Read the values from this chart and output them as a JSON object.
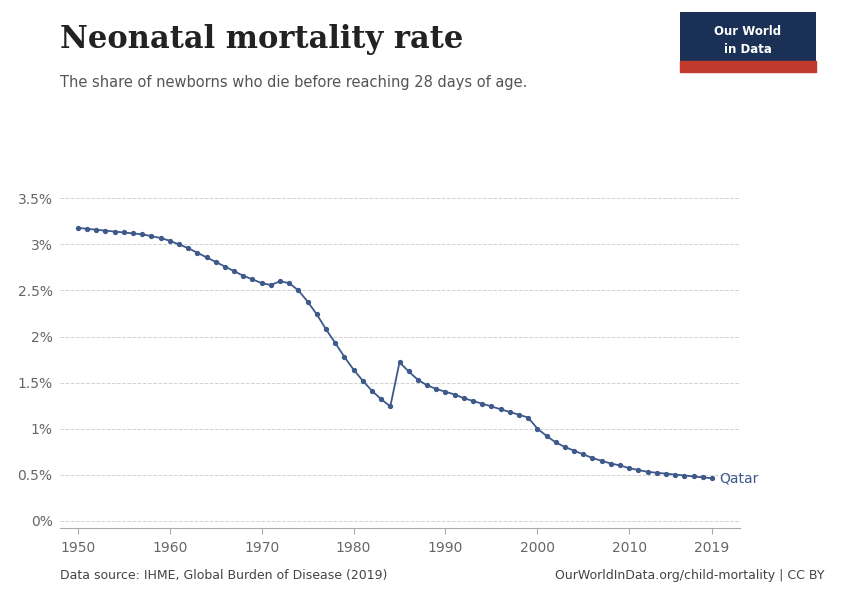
{
  "title": "Neonatal mortality rate",
  "subtitle": "The share of newborns who die before reaching 28 days of age.",
  "data_source": "Data source: IHME, Global Burden of Disease (2019)",
  "copyright": "OurWorldInData.org/child-mortality | CC BY",
  "line_color": "#3d5a8a",
  "marker_color": "#3d5a8a",
  "background_color": "#ffffff",
  "grid_color": "#cccccc",
  "label_name": "Qatar",
  "years": [
    1950,
    1951,
    1952,
    1953,
    1954,
    1955,
    1956,
    1957,
    1958,
    1959,
    1960,
    1961,
    1962,
    1963,
    1964,
    1965,
    1966,
    1967,
    1968,
    1969,
    1970,
    1971,
    1972,
    1973,
    1974,
    1975,
    1976,
    1977,
    1978,
    1979,
    1980,
    1981,
    1982,
    1983,
    1984,
    1985,
    1986,
    1987,
    1988,
    1989,
    1990,
    1991,
    1992,
    1993,
    1994,
    1995,
    1996,
    1997,
    1998,
    1999,
    2000,
    2001,
    2002,
    2003,
    2004,
    2005,
    2006,
    2007,
    2008,
    2009,
    2010,
    2011,
    2012,
    2013,
    2014,
    2015,
    2016,
    2017,
    2018,
    2019
  ],
  "values": [
    0.0318,
    0.0317,
    0.0316,
    0.0315,
    0.0314,
    0.0313,
    0.0312,
    0.0311,
    0.0309,
    0.0307,
    0.0304,
    0.03,
    0.0296,
    0.0291,
    0.0286,
    0.0281,
    0.0276,
    0.0271,
    0.0266,
    0.0262,
    0.0258,
    0.0256,
    0.026,
    0.0258,
    0.025,
    0.0238,
    0.0224,
    0.0208,
    0.0193,
    0.0178,
    0.0164,
    0.0152,
    0.0141,
    0.0132,
    0.0124,
    0.0172,
    0.0162,
    0.0153,
    0.0147,
    0.0143,
    0.014,
    0.0137,
    0.0133,
    0.013,
    0.0127,
    0.0124,
    0.0121,
    0.0118,
    0.0115,
    0.0112,
    0.01,
    0.0092,
    0.0085,
    0.008,
    0.0076,
    0.0072,
    0.0068,
    0.0065,
    0.0062,
    0.006,
    0.0057,
    0.0055,
    0.0053,
    0.0052,
    0.0051,
    0.005,
    0.0049,
    0.0048,
    0.0047,
    0.0046
  ],
  "yticks": [
    0.0,
    0.005,
    0.01,
    0.015,
    0.02,
    0.025,
    0.03,
    0.035
  ],
  "ytick_labels": [
    "0%",
    "0.5%",
    "1%",
    "1.5%",
    "2%",
    "2.5%",
    "3%",
    "3.5%"
  ],
  "xticks": [
    1950,
    1960,
    1970,
    1980,
    1990,
    2000,
    2010,
    2019
  ],
  "ylim": [
    -0.0008,
    0.037
  ],
  "xlim": [
    1948,
    2022
  ]
}
